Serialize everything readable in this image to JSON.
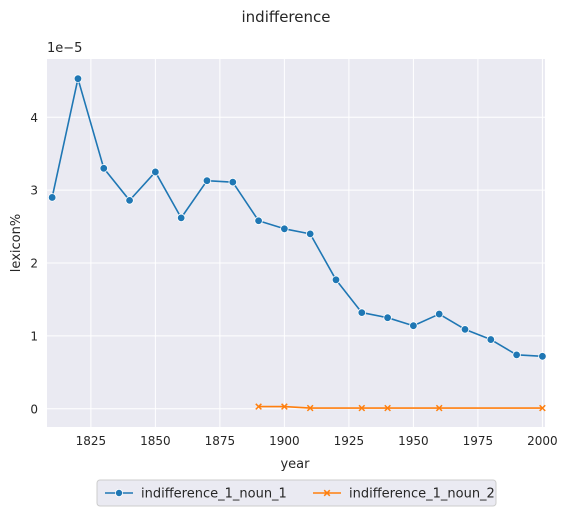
{
  "chart_data": {
    "type": "line",
    "title": "indifference",
    "xlabel": "year",
    "ylabel": "lexicon%",
    "y_offset_text": "1e−5",
    "xlim": [
      1808,
      2001
    ],
    "ylim": [
      -0.25,
      4.8
    ],
    "y_scale_multiplier": 1e-05,
    "x_ticks": [
      1825,
      1850,
      1875,
      1900,
      1925,
      1950,
      1975,
      2000
    ],
    "y_ticks": [
      0,
      1,
      2,
      3,
      4
    ],
    "grid": true,
    "legend_position": "bottom-center",
    "background": "#eaeaf2",
    "series": [
      {
        "name": "indifference_1_noun_1",
        "color": "#1f77b4",
        "marker": "circle",
        "x": [
          1810,
          1820,
          1830,
          1840,
          1850,
          1860,
          1870,
          1880,
          1890,
          1900,
          1910,
          1920,
          1930,
          1940,
          1950,
          1960,
          1970,
          1980,
          1990,
          2000
        ],
        "y": [
          2.9,
          4.53,
          3.3,
          2.86,
          3.25,
          2.62,
          3.13,
          3.11,
          2.58,
          2.47,
          2.4,
          1.77,
          1.32,
          1.25,
          1.14,
          1.3,
          1.09,
          0.95,
          0.74,
          0.72
        ]
      },
      {
        "name": "indifference_1_noun_2",
        "color": "#ff7f0e",
        "marker": "x",
        "x": [
          1890,
          1900,
          1910,
          1930,
          1940,
          1960,
          2000
        ],
        "y": [
          0.03,
          0.03,
          0.01,
          0.01,
          0.01,
          0.01,
          0.01
        ]
      }
    ]
  }
}
